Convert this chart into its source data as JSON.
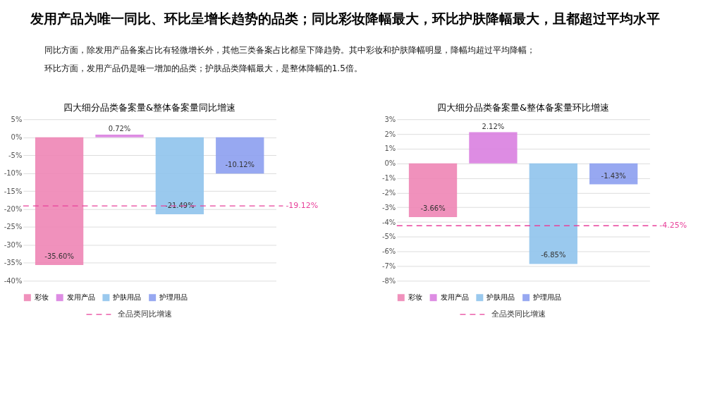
{
  "chart_data": [
    {
      "type": "other",
      "title": "发用产品为唯一同比、环比呈增长趋势的品类；同比彩妆降幅最大，环比护肤降幅最大，且都超过平均水平",
      "annotations": [
        "同比方面，除发用产品备案占比有轻微增长外，其他三类备案占比都呈下降趋势。其中彩妆和护肤降幅明显，降幅均超过平均降幅；",
        "环比方面，发用产品仍是唯一增加的品类；护肤品类降幅最大，是整体降幅的1.5倍。"
      ]
    },
    {
      "type": "bar",
      "title": "四大细分品类备案量&整体备案量同比增速",
      "categories": [
        null,
        null,
        null,
        null
      ],
      "series": [
        {
          "name": "彩妆",
          "color": "#ee85b5",
          "values": [
            -35.6,
            null,
            null,
            null
          ],
          "value_labels": [
            "-35.60%",
            null,
            null,
            null
          ]
        },
        {
          "name": "发用产品",
          "color": "#d97fe0",
          "values": [
            null,
            0.72,
            null,
            null
          ],
          "value_labels": [
            null,
            "0.72%",
            null,
            null
          ]
        },
        {
          "name": "护肤用品",
          "color": "#8fc3ec",
          "values": [
            null,
            null,
            -21.49,
            null
          ],
          "value_labels": [
            null,
            null,
            "-21.49%",
            null
          ]
        },
        {
          "name": "护理用品",
          "color": "#8c9ef0",
          "values": [
            null,
            null,
            null,
            -10.12
          ],
          "value_labels": [
            null,
            null,
            null,
            "-10.12%"
          ]
        }
      ],
      "ylim": [
        -40,
        5
      ],
      "yticks": [
        {
          "value": 5,
          "label": "5%"
        },
        {
          "value": 0,
          "label": "0%"
        },
        {
          "value": -5,
          "label": "-5%"
        },
        {
          "value": -10,
          "label": "-10%"
        },
        {
          "value": -15,
          "label": "-15%"
        },
        {
          "value": -20,
          "label": "-20%"
        },
        {
          "value": -25,
          "label": "-25%"
        },
        {
          "value": -30,
          "label": "-30%"
        },
        {
          "value": -35,
          "label": "-35%"
        },
        {
          "value": -40,
          "label": "-40%"
        }
      ],
      "ref_lines": [
        {
          "axis": "y",
          "value": -19.12,
          "label": "-19.12%",
          "color": "#e8409a",
          "line_style": "dashed"
        }
      ],
      "annotations": [
        "全品类同比增速"
      ],
      "grid": "y",
      "legend": "bottom",
      "tick_labels": "y"
    },
    {
      "type": "bar",
      "title": "四大细分品类备案量&整体备案量环比增速",
      "categories": [
        null,
        null,
        null,
        null
      ],
      "series": [
        {
          "name": "彩妆",
          "color": "#ee85b5",
          "values": [
            -3.66,
            null,
            null,
            null
          ],
          "value_labels": [
            "-3.66%",
            null,
            null,
            null
          ]
        },
        {
          "name": "发用产品",
          "color": "#d97fe0",
          "values": [
            null,
            2.12,
            null,
            null
          ],
          "value_labels": [
            null,
            "2.12%",
            null,
            null
          ]
        },
        {
          "name": "护肤用品",
          "color": "#8fc3ec",
          "values": [
            null,
            null,
            -6.85,
            null
          ],
          "value_labels": [
            null,
            null,
            "-6.85%",
            null
          ]
        },
        {
          "name": "护理用品",
          "color": "#8c9ef0",
          "values": [
            null,
            null,
            null,
            -1.43
          ],
          "value_labels": [
            null,
            null,
            null,
            "-1.43%"
          ]
        }
      ],
      "ylim": [
        -8,
        3
      ],
      "yticks": [
        {
          "value": 3,
          "label": "3%"
        },
        {
          "value": 2,
          "label": "2%"
        },
        {
          "value": 1,
          "label": "1%"
        },
        {
          "value": 0,
          "label": "0%"
        },
        {
          "value": -1,
          "label": "-1%"
        },
        {
          "value": -2,
          "label": "-2%"
        },
        {
          "value": -3,
          "label": "-3%"
        },
        {
          "value": -4,
          "label": "-4%"
        },
        {
          "value": -5,
          "label": "-5%"
        },
        {
          "value": -6,
          "label": "-6%"
        },
        {
          "value": -7,
          "label": "-7%"
        },
        {
          "value": -8,
          "label": "-8%"
        }
      ],
      "ref_lines": [
        {
          "axis": "y",
          "value": -4.25,
          "label": "-4.25%",
          "color": "#e8409a",
          "line_style": "dashed"
        }
      ],
      "annotations": [
        "全品类同比增速"
      ],
      "grid": "y",
      "legend": "bottom",
      "tick_labels": "y"
    }
  ]
}
